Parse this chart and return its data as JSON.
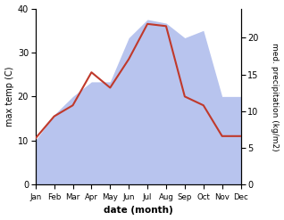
{
  "months": [
    "Jan",
    "Feb",
    "Mar",
    "Apr",
    "May",
    "Jun",
    "Jul",
    "Aug",
    "Sep",
    "Oct",
    "Nov",
    "Dec"
  ],
  "temp": [
    10.5,
    15.5,
    18.0,
    25.5,
    22.0,
    28.5,
    36.5,
    36.0,
    20.0,
    18.0,
    11.0,
    11.0
  ],
  "precip": [
    6.0,
    9.5,
    12.0,
    14.0,
    14.0,
    20.0,
    22.5,
    22.0,
    20.0,
    21.0,
    12.0,
    12.0
  ],
  "temp_color": "#c0392b",
  "precip_fill_color": "#b8c4ee",
  "temp_ylim": [
    0,
    40
  ],
  "precip_ylim": [
    0,
    24
  ],
  "precip_yticks": [
    0,
    5,
    10,
    15,
    20
  ],
  "temp_yticks": [
    0,
    10,
    20,
    30,
    40
  ],
  "xlabel": "date (month)",
  "ylabel_left": "max temp (C)",
  "ylabel_right": "med. precipitation (kg/m2)",
  "bg_color": "#ffffff"
}
